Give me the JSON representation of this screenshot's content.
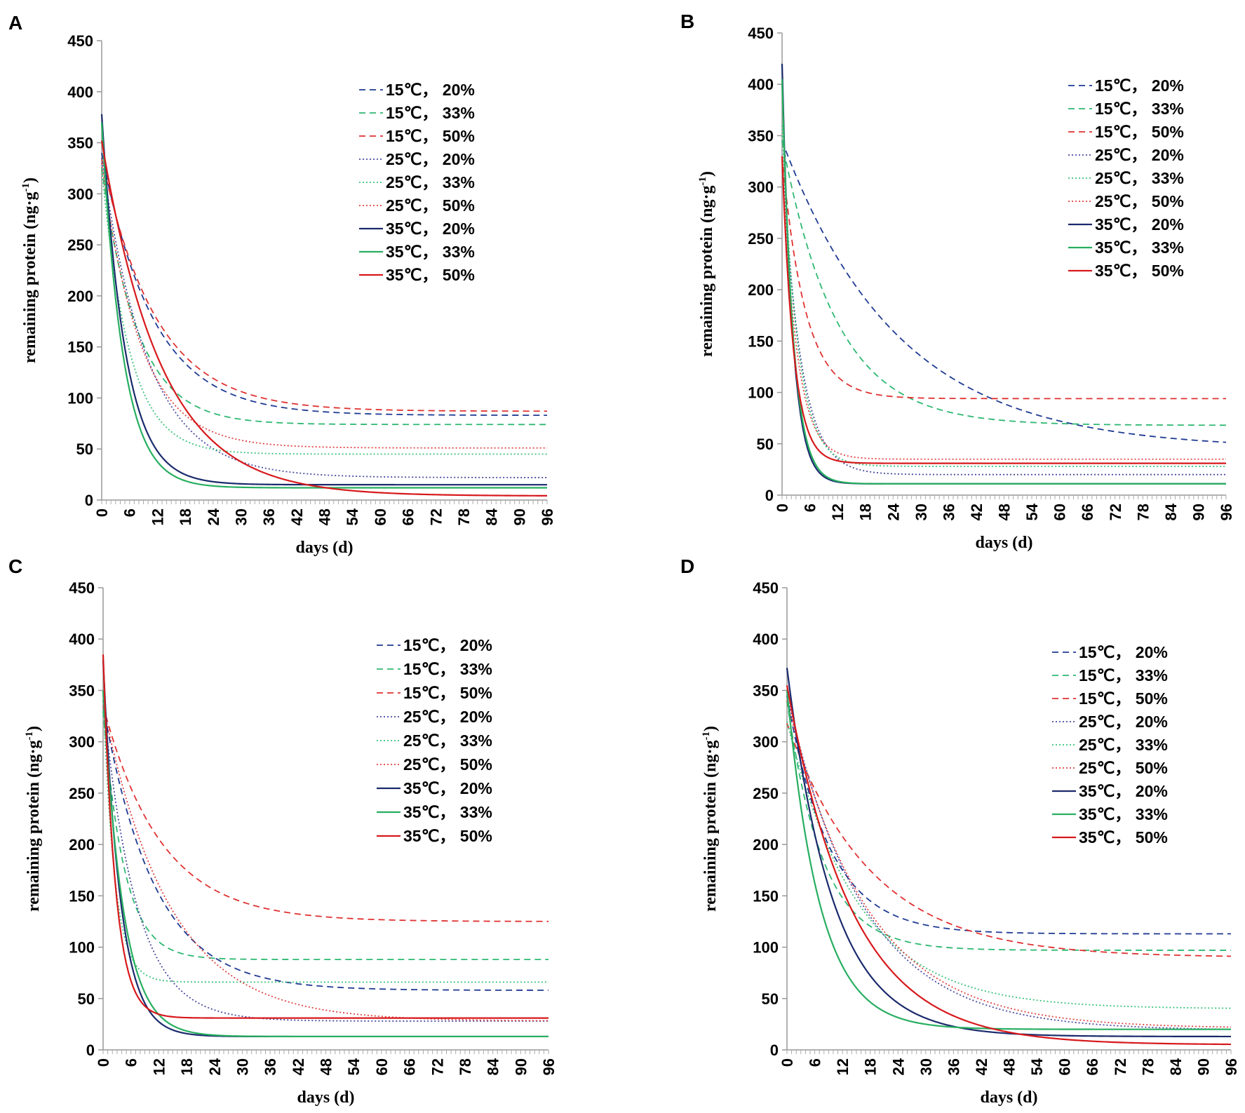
{
  "chart_data": [
    {
      "panel": "A",
      "type": "line",
      "xlabel": "days (d)",
      "ylabel": "remaining protein (ng·g⁻¹)",
      "ylabel_base": "remaining protein (ng·g",
      "ylabel_sup": "-1",
      "ylabel_end": ")",
      "xlim": [
        0,
        96
      ],
      "ylim": [
        0,
        450
      ],
      "xticks": [
        0,
        6,
        12,
        18,
        24,
        30,
        36,
        42,
        48,
        54,
        60,
        66,
        72,
        78,
        84,
        90,
        96
      ],
      "yticks": [
        0,
        50,
        100,
        150,
        200,
        250,
        300,
        350,
        400,
        450
      ],
      "series": [
        {
          "name": "15℃， 20%",
          "start": 340,
          "plateau": 83,
          "k": 0.09,
          "color": "#1f3a93",
          "dash": "dashed"
        },
        {
          "name": "15℃， 33%",
          "start": 325,
          "plateau": 74,
          "k": 0.13,
          "color": "#2eb872",
          "dash": "dashed"
        },
        {
          "name": "15℃， 50%",
          "start": 335,
          "plateau": 87,
          "k": 0.085,
          "color": "#e03131",
          "dash": "dashed"
        },
        {
          "name": "25℃， 20%",
          "start": 335,
          "plateau": 22,
          "k": 0.1,
          "color": "#4a4aa0",
          "dash": "dotted"
        },
        {
          "name": "25℃， 33%",
          "start": 325,
          "plateau": 45,
          "k": 0.17,
          "color": "#3ac27a",
          "dash": "dotted"
        },
        {
          "name": "25℃， 50%",
          "start": 330,
          "plateau": 51,
          "k": 0.12,
          "color": "#e04444",
          "dash": "dotted"
        },
        {
          "name": "35℃， 20%",
          "start": 378,
          "plateau": 15,
          "k": 0.2,
          "color": "#1a2a6c",
          "dash": "solid"
        },
        {
          "name": "35℃， 33%",
          "start": 370,
          "plateau": 12,
          "k": 0.22,
          "color": "#27ae60",
          "dash": "solid"
        },
        {
          "name": "35℃， 50%",
          "start": 352,
          "plateau": 4,
          "k": 0.078,
          "color": "#d7191c",
          "dash": "solid"
        }
      ]
    },
    {
      "panel": "B",
      "type": "line",
      "xlabel": "days (d)",
      "ylabel": "remaining protein (ng·g⁻¹)",
      "ylabel_base": "remaining protein (ng·g",
      "ylabel_sup": "-1",
      "ylabel_end": ")",
      "xlim": [
        0,
        96
      ],
      "ylim": [
        0,
        450
      ],
      "xticks": [
        0,
        6,
        12,
        18,
        24,
        30,
        36,
        42,
        48,
        54,
        60,
        66,
        72,
        78,
        84,
        90,
        96
      ],
      "yticks": [
        0,
        50,
        100,
        150,
        200,
        250,
        300,
        350,
        400,
        450
      ],
      "series": [
        {
          "name": "15℃， 20%",
          "start": 345,
          "plateau": 45,
          "k": 0.04,
          "color": "#1f3a93",
          "dash": "dashed"
        },
        {
          "name": "15℃， 33%",
          "start": 345,
          "plateau": 68,
          "k": 0.085,
          "color": "#2eb872",
          "dash": "dashed"
        },
        {
          "name": "15℃， 50%",
          "start": 330,
          "plateau": 94,
          "k": 0.2,
          "color": "#e03131",
          "dash": "dashed"
        },
        {
          "name": "25℃， 20%",
          "start": 330,
          "plateau": 20,
          "k": 0.25,
          "color": "#4a4aa0",
          "dash": "dotted"
        },
        {
          "name": "25℃， 33%",
          "start": 360,
          "plateau": 28,
          "k": 0.3,
          "color": "#3ac27a",
          "dash": "dotted"
        },
        {
          "name": "25℃， 50%",
          "start": 330,
          "plateau": 35,
          "k": 0.32,
          "color": "#e04444",
          "dash": "dotted"
        },
        {
          "name": "35℃， 20%",
          "start": 420,
          "plateau": 11,
          "k": 0.45,
          "color": "#1a2a6c",
          "dash": "solid"
        },
        {
          "name": "35℃， 33%",
          "start": 405,
          "plateau": 11,
          "k": 0.42,
          "color": "#27ae60",
          "dash": "solid"
        },
        {
          "name": "35℃， 50%",
          "start": 330,
          "plateau": 31,
          "k": 0.4,
          "color": "#d7191c",
          "dash": "solid"
        }
      ]
    },
    {
      "panel": "C",
      "type": "line",
      "xlabel": "days (d)",
      "ylabel": "remaining protein (ng·g⁻¹)",
      "ylabel_base": "remaining protein (ng·g",
      "ylabel_sup": "-1",
      "ylabel_end": ")",
      "xlim": [
        0,
        96
      ],
      "ylim": [
        0,
        450
      ],
      "xticks": [
        0,
        6,
        12,
        18,
        24,
        30,
        36,
        42,
        48,
        54,
        60,
        66,
        72,
        78,
        84,
        90,
        96
      ],
      "yticks": [
        0,
        50,
        100,
        150,
        200,
        250,
        300,
        350,
        400,
        450
      ],
      "series": [
        {
          "name": "15℃， 20%",
          "start": 335,
          "plateau": 58,
          "k": 0.09,
          "color": "#1f3a93",
          "dash": "dashed"
        },
        {
          "name": "15℃， 33%",
          "start": 330,
          "plateau": 88,
          "k": 0.22,
          "color": "#2eb872",
          "dash": "dashed"
        },
        {
          "name": "15℃， 50%",
          "start": 335,
          "plateau": 125,
          "k": 0.08,
          "color": "#e03131",
          "dash": "dashed"
        },
        {
          "name": "25℃， 20%",
          "start": 340,
          "plateau": 28,
          "k": 0.14,
          "color": "#4a4aa0",
          "dash": "dotted"
        },
        {
          "name": "25℃， 33%",
          "start": 345,
          "plateau": 66,
          "k": 0.4,
          "color": "#3ac27a",
          "dash": "dotted"
        },
        {
          "name": "25℃， 50%",
          "start": 335,
          "plateau": 28,
          "k": 0.07,
          "color": "#e04444",
          "dash": "dotted"
        },
        {
          "name": "35℃， 20%",
          "start": 380,
          "plateau": 13,
          "k": 0.27,
          "color": "#1a2a6c",
          "dash": "solid"
        },
        {
          "name": "35℃， 33%",
          "start": 350,
          "plateau": 13,
          "k": 0.23,
          "color": "#27ae60",
          "dash": "solid"
        },
        {
          "name": "35℃， 50%",
          "start": 385,
          "plateau": 31,
          "k": 0.38,
          "color": "#d7191c",
          "dash": "solid"
        }
      ]
    },
    {
      "panel": "D",
      "type": "line",
      "xlabel": "days (d)",
      "ylabel": "remaining protein (ng·g⁻¹)",
      "ylabel_base": "remaining protein (ng·g",
      "ylabel_sup": "-1",
      "ylabel_end": ")",
      "xlim": [
        0,
        96
      ],
      "ylim": [
        0,
        450
      ],
      "xticks": [
        0,
        6,
        12,
        18,
        24,
        30,
        36,
        42,
        48,
        54,
        60,
        66,
        72,
        78,
        84,
        90,
        96
      ],
      "yticks": [
        0,
        50,
        100,
        150,
        200,
        250,
        300,
        350,
        400,
        450
      ],
      "series": [
        {
          "name": "15℃， 20%",
          "start": 345,
          "plateau": 113,
          "k": 0.11,
          "color": "#1f3a93",
          "dash": "dashed"
        },
        {
          "name": "15℃， 33%",
          "start": 340,
          "plateau": 97,
          "k": 0.13,
          "color": "#2eb872",
          "dash": "dashed"
        },
        {
          "name": "15℃， 50%",
          "start": 318,
          "plateau": 90,
          "k": 0.055,
          "color": "#e03131",
          "dash": "dashed"
        },
        {
          "name": "25℃， 20%",
          "start": 345,
          "plateau": 19,
          "k": 0.06,
          "color": "#4a4aa0",
          "dash": "dotted"
        },
        {
          "name": "25℃， 33%",
          "start": 320,
          "plateau": 40,
          "k": 0.065,
          "color": "#3ac27a",
          "dash": "dotted"
        },
        {
          "name": "25℃， 50%",
          "start": 340,
          "plateau": 21,
          "k": 0.058,
          "color": "#e04444",
          "dash": "dotted"
        },
        {
          "name": "35℃， 20%",
          "start": 372,
          "plateau": 13,
          "k": 0.1,
          "color": "#1a2a6c",
          "dash": "solid"
        },
        {
          "name": "35℃， 33%",
          "start": 350,
          "plateau": 20,
          "k": 0.14,
          "color": "#27ae60",
          "dash": "solid"
        },
        {
          "name": "35℃， 50%",
          "start": 355,
          "plateau": 5,
          "k": 0.07,
          "color": "#d7191c",
          "dash": "solid"
        }
      ]
    }
  ]
}
